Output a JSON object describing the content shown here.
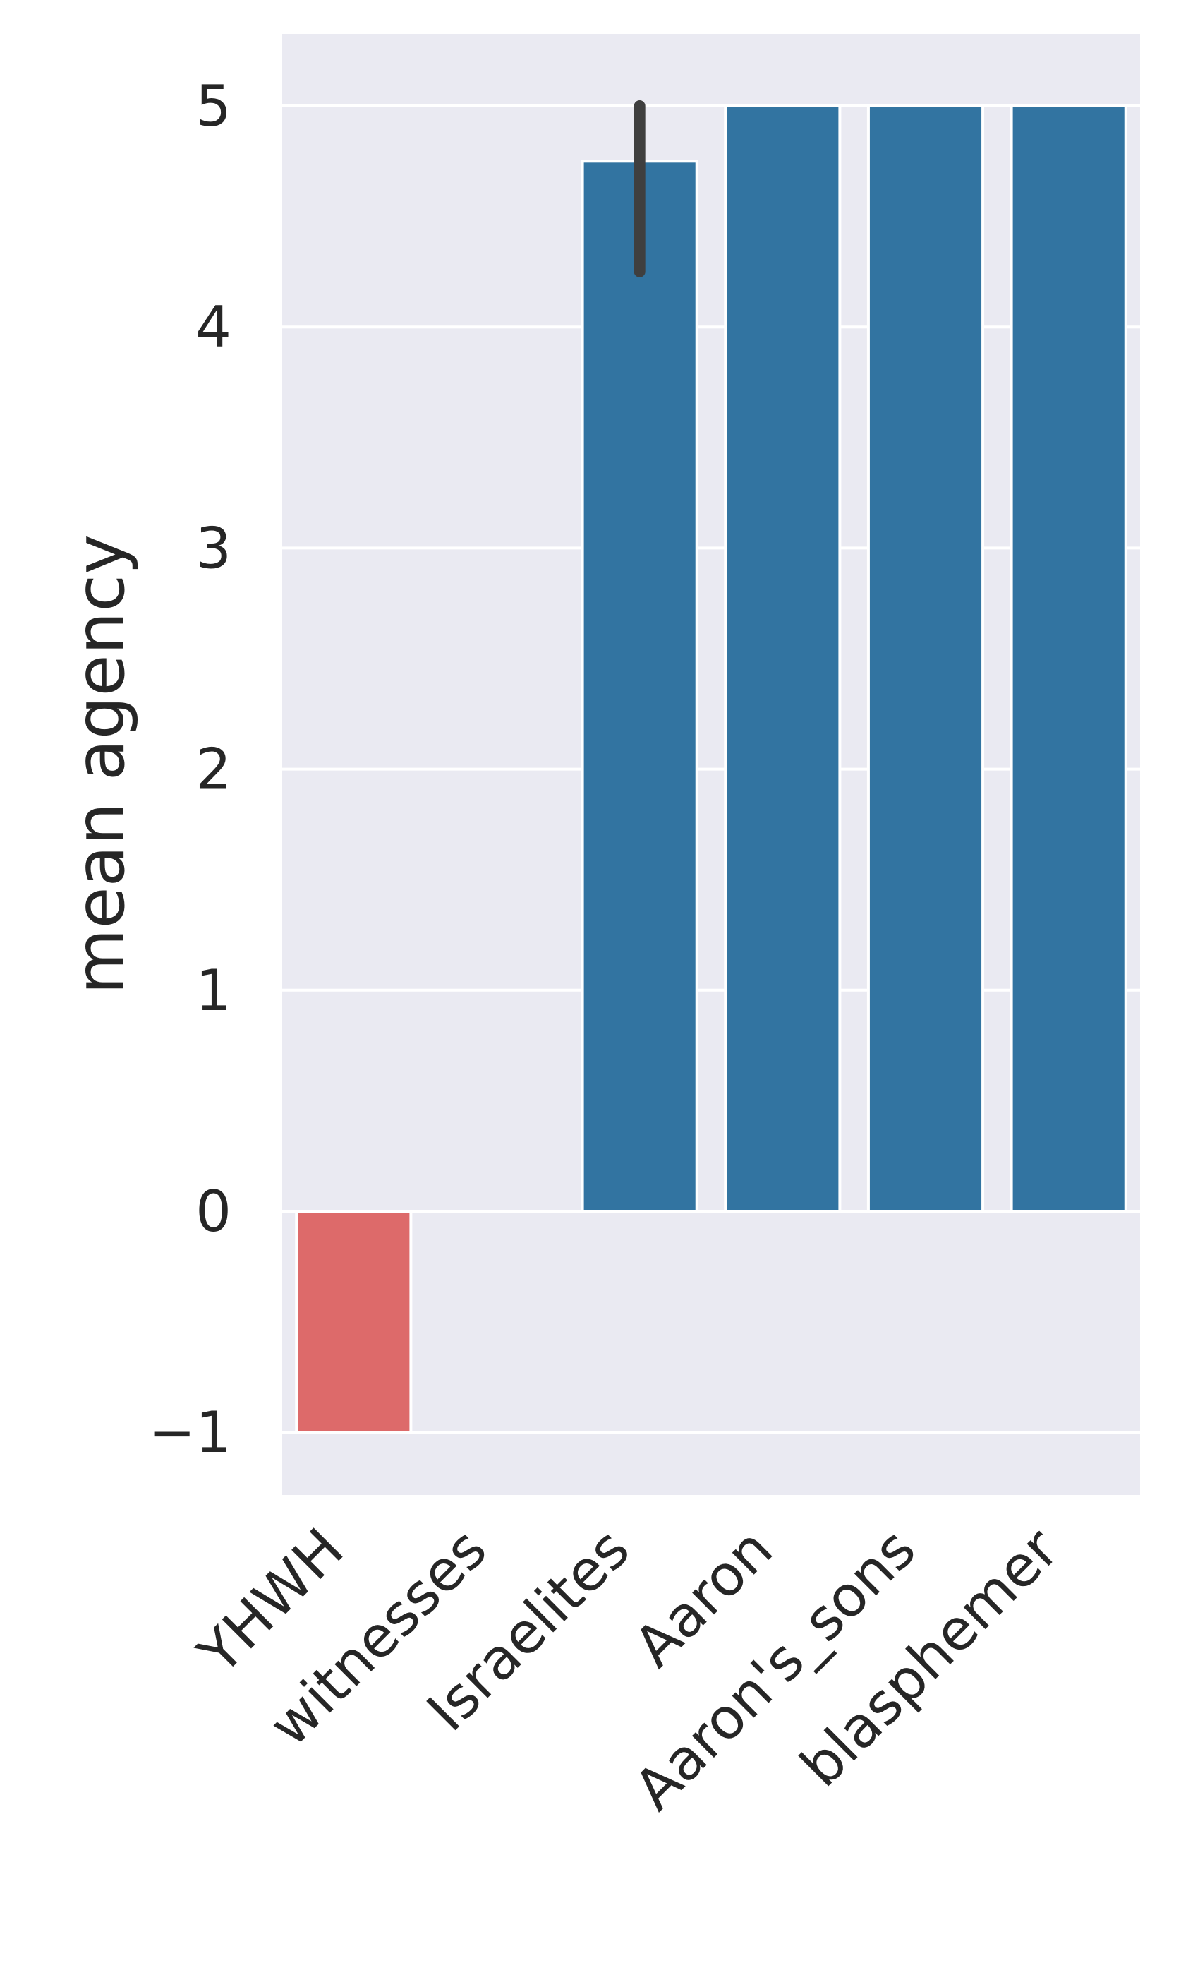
{
  "chart_data": {
    "type": "bar",
    "title": "",
    "xlabel": "",
    "ylabel": "mean agency",
    "categories": [
      "YHWH",
      "witnesses",
      "Israelites",
      "Aaron",
      "Aaron's_sons",
      "blasphemer"
    ],
    "values": [
      -1,
      0,
      4.75,
      5,
      5,
      5
    ],
    "error_bars": [
      null,
      null,
      {
        "low": 4.25,
        "high": 5.0
      },
      null,
      null,
      null
    ],
    "bar_colors": [
      "#dd6a6a",
      "#3274a1",
      "#3274a1",
      "#3274a1",
      "#3274a1",
      "#3274a1"
    ],
    "ylim": [
      -1.3,
      5.3
    ],
    "yticks": [
      -1,
      0,
      1,
      2,
      3,
      4,
      5
    ],
    "ytick_labels": [
      "−1",
      "0",
      "1",
      "2",
      "3",
      "4",
      "5"
    ],
    "grid": true,
    "legend": "none",
    "colors": {
      "axes_background": "#eaeaf2",
      "grid": "#ffffff",
      "error_bar": "#3f3f3f",
      "text": "#262626"
    }
  }
}
